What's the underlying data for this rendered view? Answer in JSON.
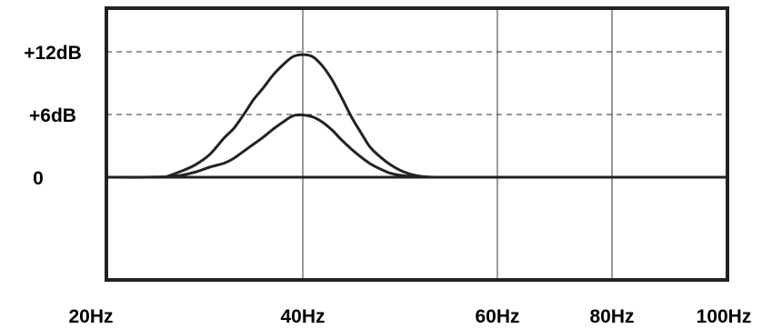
{
  "chart_data": {
    "type": "line",
    "title": "",
    "xlabel": "",
    "ylabel": "",
    "x_ticks": [
      {
        "value": 20,
        "label": "20Hz"
      },
      {
        "value": 40,
        "label": "40Hz"
      },
      {
        "value": 60,
        "label": "60Hz"
      },
      {
        "value": 80,
        "label": "80Hz"
      },
      {
        "value": 100,
        "label": "100Hz"
      }
    ],
    "y_ticks": [
      {
        "value": 0,
        "label": "0"
      },
      {
        "value": 6,
        "label": "+6dB"
      },
      {
        "value": 12,
        "label": "+12dB"
      }
    ],
    "vertical_grid": [
      40,
      60,
      80
    ],
    "dashed_grid": [
      6,
      12
    ],
    "zero_line": 0,
    "xlim": [
      20,
      100
    ],
    "ylim": [
      -12.9,
      21.4
    ],
    "series": [
      {
        "x": [
          26,
          27.5,
          29,
          30.5,
          32,
          33,
          34,
          35,
          36,
          37,
          38,
          39,
          40,
          41,
          42,
          43,
          44,
          45,
          46,
          47,
          48.5,
          50,
          51.5,
          53,
          55,
          60
        ],
        "values": [
          0,
          0.53,
          1.16,
          2.16,
          3.77,
          4.7,
          6.02,
          7.44,
          8.58,
          9.81,
          10.77,
          11.54,
          11.73,
          11.54,
          10.67,
          9.33,
          7.6,
          5.77,
          4.23,
          2.79,
          1.54,
          0.67,
          0.19,
          0.02,
          0,
          0
        ]
      },
      {
        "x": [
          20,
          24,
          27,
          29,
          30.5,
          32,
          33,
          34,
          35,
          36,
          37,
          38,
          39,
          40,
          41,
          42,
          43,
          44,
          45,
          46,
          47,
          48,
          49,
          50,
          51.5,
          53,
          55,
          60
        ],
        "values": [
          0,
          0,
          0.1,
          0.48,
          0.96,
          1.35,
          1.83,
          2.5,
          3.17,
          3.85,
          4.62,
          5.29,
          5.87,
          5.96,
          5.77,
          5.29,
          4.52,
          3.56,
          2.69,
          1.92,
          1.25,
          0.77,
          0.38,
          0.19,
          0.05,
          0,
          0,
          0
        ]
      }
    ]
  }
}
